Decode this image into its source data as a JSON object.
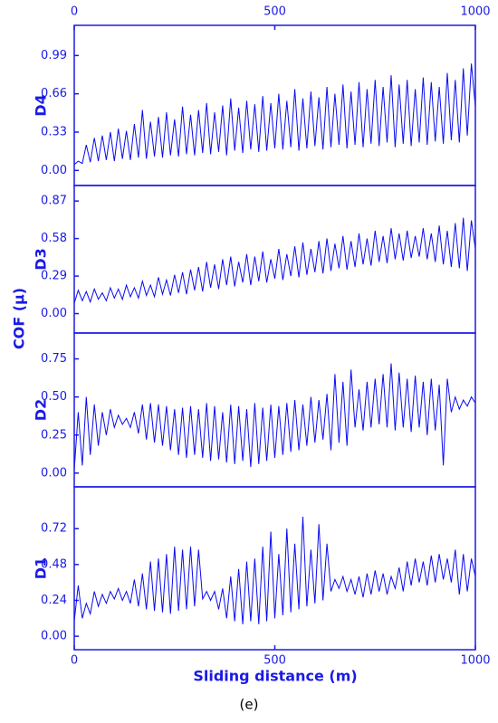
{
  "ylabel": "COF (μ)",
  "xlabel": "Sliding distance (m)",
  "caption": "(e)",
  "xlim": [
    0,
    1000
  ],
  "xticks": [
    0,
    500,
    1000
  ],
  "x": [
    0,
    10,
    20,
    30,
    40,
    50,
    60,
    70,
    80,
    90,
    100,
    110,
    120,
    130,
    140,
    150,
    160,
    170,
    180,
    190,
    200,
    210,
    220,
    230,
    240,
    250,
    260,
    270,
    280,
    290,
    300,
    310,
    320,
    330,
    340,
    350,
    360,
    370,
    380,
    390,
    400,
    410,
    420,
    430,
    440,
    450,
    460,
    470,
    480,
    490,
    500,
    510,
    520,
    530,
    540,
    550,
    560,
    570,
    580,
    590,
    600,
    610,
    620,
    630,
    640,
    650,
    660,
    670,
    680,
    690,
    700,
    710,
    720,
    730,
    740,
    750,
    760,
    770,
    780,
    790,
    800,
    810,
    820,
    830,
    840,
    850,
    860,
    870,
    880,
    890,
    900,
    910,
    920,
    930,
    940,
    950,
    960,
    970,
    980,
    990,
    1000
  ],
  "chart_data": [
    {
      "type": "line",
      "title": "D4",
      "color": "#0a0af0",
      "ylim": [
        -0.13,
        1.25
      ],
      "yticks": [
        {
          "value": 0,
          "label": "0.00"
        },
        0.33,
        0.66,
        0.99
      ],
      "values": [
        0.05,
        0.08,
        0.06,
        0.22,
        0.07,
        0.28,
        0.08,
        0.3,
        0.09,
        0.33,
        0.08,
        0.36,
        0.1,
        0.34,
        0.09,
        0.4,
        0.11,
        0.52,
        0.1,
        0.42,
        0.12,
        0.46,
        0.11,
        0.5,
        0.13,
        0.44,
        0.12,
        0.55,
        0.14,
        0.48,
        0.13,
        0.52,
        0.15,
        0.58,
        0.14,
        0.5,
        0.16,
        0.56,
        0.13,
        0.62,
        0.17,
        0.54,
        0.15,
        0.6,
        0.18,
        0.57,
        0.16,
        0.64,
        0.17,
        0.58,
        0.19,
        0.66,
        0.18,
        0.6,
        0.2,
        0.7,
        0.17,
        0.62,
        0.19,
        0.68,
        0.21,
        0.63,
        0.18,
        0.72,
        0.2,
        0.66,
        0.22,
        0.74,
        0.19,
        0.68,
        0.22,
        0.76,
        0.2,
        0.7,
        0.23,
        0.78,
        0.21,
        0.72,
        0.24,
        0.82,
        0.2,
        0.74,
        0.23,
        0.78,
        0.21,
        0.7,
        0.24,
        0.8,
        0.22,
        0.76,
        0.25,
        0.72,
        0.23,
        0.84,
        0.26,
        0.78,
        0.24,
        0.88,
        0.3,
        0.92,
        0.55
      ]
    },
    {
      "type": "line",
      "title": "D3",
      "color": "#0a0af0",
      "ylim": [
        -0.15,
        0.99
      ],
      "yticks": [
        {
          "value": 0,
          "label": "0.00"
        },
        0.29,
        0.58,
        0.87
      ],
      "values": [
        0.08,
        0.18,
        0.1,
        0.17,
        0.09,
        0.19,
        0.11,
        0.16,
        0.1,
        0.2,
        0.12,
        0.19,
        0.11,
        0.22,
        0.13,
        0.2,
        0.12,
        0.25,
        0.14,
        0.22,
        0.13,
        0.28,
        0.15,
        0.26,
        0.14,
        0.3,
        0.16,
        0.32,
        0.15,
        0.34,
        0.18,
        0.36,
        0.17,
        0.4,
        0.2,
        0.38,
        0.19,
        0.42,
        0.22,
        0.44,
        0.21,
        0.4,
        0.24,
        0.46,
        0.22,
        0.44,
        0.25,
        0.48,
        0.24,
        0.42,
        0.27,
        0.5,
        0.26,
        0.46,
        0.29,
        0.52,
        0.28,
        0.55,
        0.3,
        0.5,
        0.32,
        0.56,
        0.31,
        0.58,
        0.33,
        0.54,
        0.35,
        0.6,
        0.34,
        0.56,
        0.36,
        0.62,
        0.38,
        0.58,
        0.37,
        0.64,
        0.4,
        0.6,
        0.39,
        0.66,
        0.42,
        0.62,
        0.41,
        0.64,
        0.43,
        0.6,
        0.44,
        0.66,
        0.42,
        0.62,
        0.4,
        0.68,
        0.38,
        0.64,
        0.36,
        0.7,
        0.35,
        0.74,
        0.33,
        0.72,
        0.5
      ]
    },
    {
      "type": "line",
      "title": "D2",
      "color": "#0a0af0",
      "ylim": [
        -0.09,
        0.92
      ],
      "yticks": [
        {
          "value": 0,
          "label": "0.00"
        },
        0.25,
        {
          "value": 0.5,
          "label": "0.50"
        },
        0.75
      ],
      "values": [
        0.02,
        0.4,
        0.05,
        0.5,
        0.12,
        0.45,
        0.18,
        0.4,
        0.25,
        0.42,
        0.3,
        0.38,
        0.32,
        0.36,
        0.3,
        0.4,
        0.26,
        0.45,
        0.22,
        0.46,
        0.2,
        0.45,
        0.18,
        0.44,
        0.15,
        0.42,
        0.12,
        0.43,
        0.1,
        0.44,
        0.12,
        0.42,
        0.1,
        0.46,
        0.08,
        0.44,
        0.09,
        0.4,
        0.07,
        0.45,
        0.06,
        0.44,
        0.08,
        0.42,
        0.04,
        0.46,
        0.06,
        0.43,
        0.08,
        0.45,
        0.1,
        0.44,
        0.12,
        0.46,
        0.14,
        0.48,
        0.15,
        0.45,
        0.18,
        0.5,
        0.2,
        0.48,
        0.22,
        0.52,
        0.15,
        0.65,
        0.2,
        0.6,
        0.18,
        0.68,
        0.3,
        0.55,
        0.28,
        0.6,
        0.3,
        0.62,
        0.32,
        0.65,
        0.3,
        0.72,
        0.28,
        0.66,
        0.3,
        0.62,
        0.27,
        0.64,
        0.3,
        0.6,
        0.25,
        0.62,
        0.28,
        0.58,
        0.05,
        0.62,
        0.4,
        0.5,
        0.42,
        0.48,
        0.44,
        0.5,
        0.46
      ]
    },
    {
      "type": "line",
      "title": "D1",
      "color": "#0a0af0",
      "ylim": [
        -0.09,
        1.0
      ],
      "yticks": [
        {
          "value": 0,
          "label": "0.00"
        },
        0.24,
        0.48,
        0.72
      ],
      "values": [
        0.1,
        0.34,
        0.12,
        0.22,
        0.15,
        0.3,
        0.2,
        0.28,
        0.22,
        0.3,
        0.25,
        0.32,
        0.24,
        0.3,
        0.22,
        0.38,
        0.2,
        0.42,
        0.18,
        0.5,
        0.17,
        0.52,
        0.16,
        0.55,
        0.15,
        0.6,
        0.17,
        0.58,
        0.18,
        0.6,
        0.2,
        0.58,
        0.25,
        0.3,
        0.24,
        0.3,
        0.18,
        0.32,
        0.12,
        0.4,
        0.1,
        0.45,
        0.08,
        0.5,
        0.1,
        0.52,
        0.08,
        0.6,
        0.1,
        0.7,
        0.12,
        0.55,
        0.14,
        0.72,
        0.16,
        0.62,
        0.18,
        0.8,
        0.2,
        0.58,
        0.22,
        0.75,
        0.24,
        0.62,
        0.3,
        0.38,
        0.32,
        0.4,
        0.3,
        0.38,
        0.28,
        0.4,
        0.26,
        0.42,
        0.28,
        0.44,
        0.3,
        0.42,
        0.28,
        0.4,
        0.32,
        0.46,
        0.3,
        0.5,
        0.34,
        0.52,
        0.36,
        0.5,
        0.34,
        0.54,
        0.36,
        0.55,
        0.38,
        0.52,
        0.36,
        0.58,
        0.28,
        0.55,
        0.3,
        0.52,
        0.4
      ]
    }
  ]
}
